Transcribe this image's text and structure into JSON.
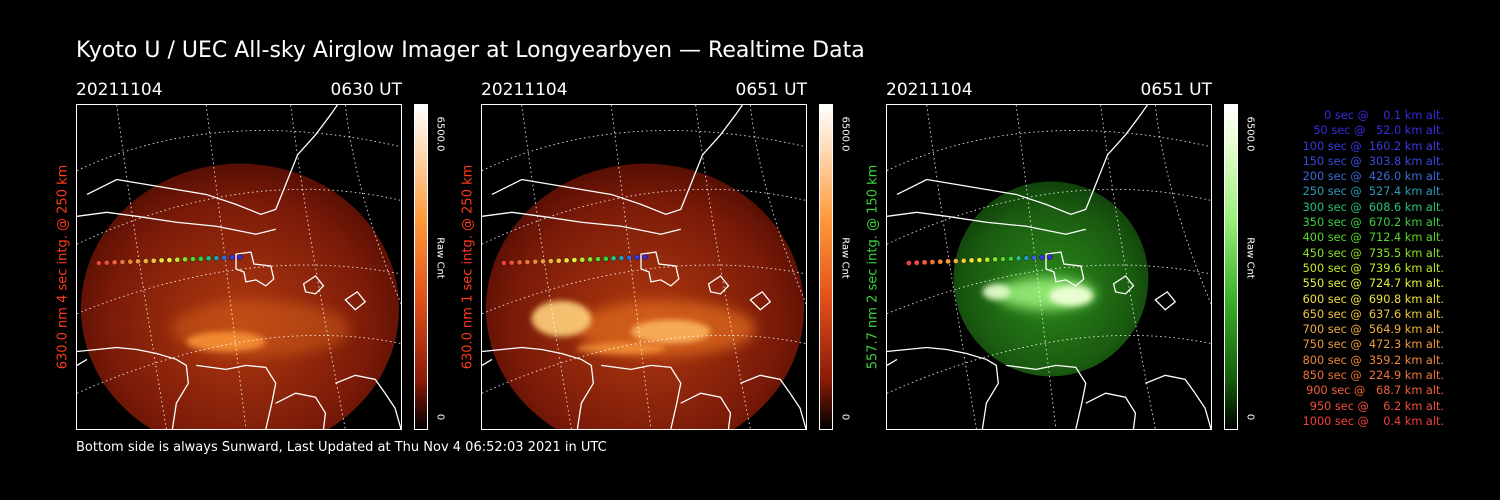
{
  "title": "Kyoto U / UEC All-sky Airglow Imager at Longyearbyen — Realtime Data",
  "footer": "Bottom side is always Sunward, Last Updated at Thu Nov  4 06:52:03 2021 in UTC",
  "panels": [
    {
      "date": "20211104",
      "time": "0630 UT",
      "label": "630.0 nm 4 sec intg. @ 250 km",
      "label_color": "#ff3a1a",
      "cbar_max": "6500.0",
      "cbar_min": "0",
      "cbar_unit": "Raw Cnt",
      "scheme": "red",
      "brightness": 0.45
    },
    {
      "date": "20211104",
      "time": "0651 UT",
      "label": "630.0 nm 1 sec intg. @ 250 km",
      "label_color": "#ff3a1a",
      "cbar_max": "6500.0",
      "cbar_min": "0",
      "cbar_unit": "Raw Cnt",
      "scheme": "red",
      "brightness": 0.8
    },
    {
      "date": "20211104",
      "time": "0651 UT",
      "label": "557.7 nm 2 sec intg. @ 150 km",
      "label_color": "#3ad23a",
      "cbar_max": "6500.0",
      "cbar_min": "0",
      "cbar_unit": "Raw Cnt",
      "scheme": "green",
      "brightness": 0.8
    }
  ],
  "legend": [
    {
      "text": "0 sec @    0.1 km alt.",
      "color": "#3a2ae0"
    },
    {
      "text": "50 sec @   52.0 km alt.",
      "color": "#3a2ae0"
    },
    {
      "text": "100 sec @  160.2 km alt.",
      "color": "#3a3ae0"
    },
    {
      "text": "150 sec @  303.8 km alt.",
      "color": "#3a4ae0"
    },
    {
      "text": "200 sec @  426.0 km alt.",
      "color": "#3a6ad8"
    },
    {
      "text": "250 sec @  527.4 km alt.",
      "color": "#2a9ab8"
    },
    {
      "text": "300 sec @  608.6 km alt.",
      "color": "#2ac07a"
    },
    {
      "text": "350 sec @  670.2 km alt.",
      "color": "#3ad03a"
    },
    {
      "text": "400 sec @  712.4 km alt.",
      "color": "#5ad82a"
    },
    {
      "text": "450 sec @  735.5 km alt.",
      "color": "#8ae02a"
    },
    {
      "text": "500 sec @  739.6 km alt.",
      "color": "#c0e82a"
    },
    {
      "text": "550 sec @  724.7 km alt.",
      "color": "#e8f03a"
    },
    {
      "text": "600 sec @  690.8 km alt.",
      "color": "#f0e040"
    },
    {
      "text": "650 sec @  637.6 km alt.",
      "color": "#f0c840"
    },
    {
      "text": "700 sec @  564.9 km alt.",
      "color": "#f0b040"
    },
    {
      "text": "750 sec @  472.3 km alt.",
      "color": "#f09a3a"
    },
    {
      "text": "800 sec @  359.2 km alt.",
      "color": "#f0863a"
    },
    {
      "text": "850 sec @  224.9 km alt.",
      "color": "#f0723a"
    },
    {
      "text": "900 sec @   68.7 km alt.",
      "color": "#f0603a"
    },
    {
      "text": "950 sec @    6.2 km alt.",
      "color": "#f0503a"
    },
    {
      "text": "1000 sec @    0.4 km alt.",
      "color": "#f0403a"
    }
  ]
}
